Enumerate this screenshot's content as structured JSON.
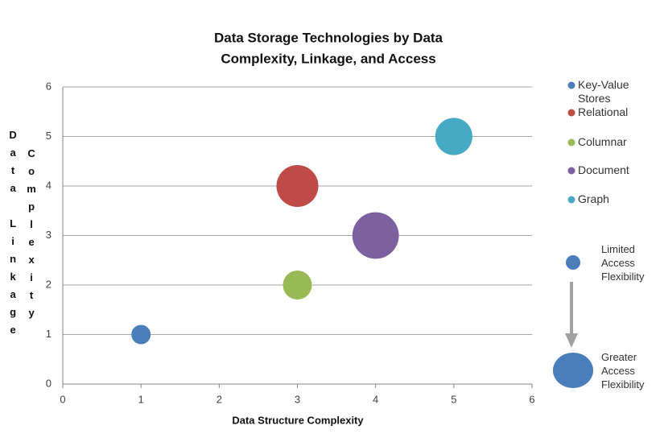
{
  "chart_data": {
    "type": "bubble",
    "title": [
      "Data Storage Technologies by Data",
      "Complexity, Linkage, and Access"
    ],
    "xlabel": "Data Structure Complexity",
    "ylabel": [
      "Data Linkage",
      "Complexity"
    ],
    "xlim": [
      0,
      6
    ],
    "ylim": [
      0,
      6
    ],
    "xticks": [
      0,
      1,
      2,
      3,
      4,
      5,
      6
    ],
    "yticks": [
      0,
      1,
      2,
      3,
      4,
      5,
      6
    ],
    "grid": true,
    "legend": "right",
    "series": [
      {
        "name": "Key-Value Stores",
        "color": "#4a7ebb",
        "x": [
          1
        ],
        "y": [
          1
        ],
        "size": [
          1
        ]
      },
      {
        "name": "Relational",
        "color": "#be4b48",
        "x": [
          3
        ],
        "y": [
          4
        ],
        "size": [
          4.7
        ]
      },
      {
        "name": "Columnar",
        "color": "#98b954",
        "x": [
          3
        ],
        "y": [
          2
        ],
        "size": [
          2.25
        ]
      },
      {
        "name": "Document",
        "color": "#7d60a0",
        "x": [
          4
        ],
        "y": [
          3
        ],
        "size": [
          5.8
        ]
      },
      {
        "name": "Graph",
        "color": "#46aac5",
        "x": [
          5
        ],
        "y": [
          5
        ],
        "size": [
          3.7
        ]
      }
    ],
    "annotations": [
      "Limited Access Flexibility",
      "Greater Access Flexibility"
    ]
  }
}
